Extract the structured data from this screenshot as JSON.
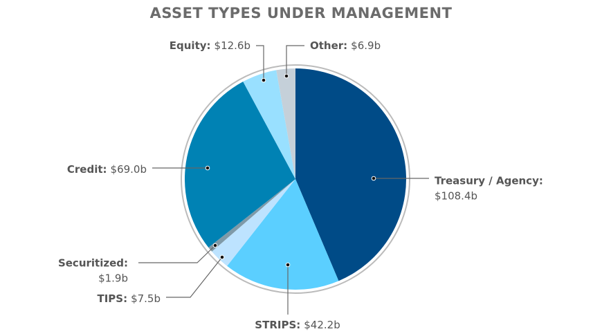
{
  "chart_data": {
    "type": "pie",
    "title": "ASSET TYPES UNDER MANAGEMENT",
    "categories": [
      "Treasury / Agency:",
      "STRIPS:",
      "TIPS:",
      "Securitized:",
      "Credit:",
      "Equity:",
      "Other:"
    ],
    "values": [
      108.4,
      42.2,
      7.5,
      1.9,
      69.0,
      12.6,
      6.9
    ],
    "value_labels": [
      "$108.4b",
      "$42.2b",
      "$7.5b",
      "$1.9b",
      "$69.0b",
      "$12.6b",
      "$6.9b"
    ],
    "colors": [
      "#004b87",
      "#5bcfff",
      "#bde3ff",
      "#7f9aa8",
      "#0082b4",
      "#99e0ff",
      "#c5d0d9"
    ]
  }
}
